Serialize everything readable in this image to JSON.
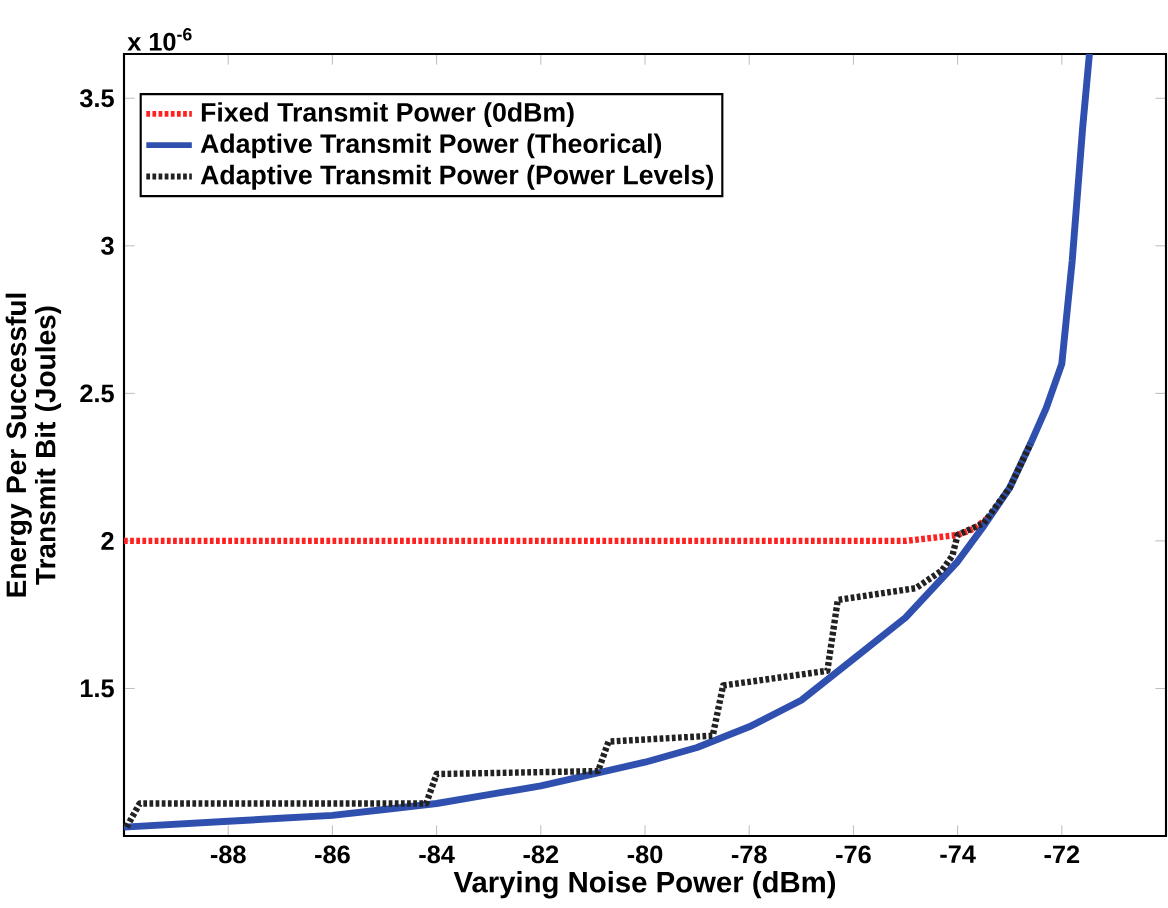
{
  "chart_data": {
    "type": "line",
    "xlabel": "Varying Noise Power (dBm)",
    "ylabel": "Energy Per Successful Transmit Bit (Joules)",
    "annotations": [
      "x 10$^{-6}$"
    ],
    "xlim": [
      -90,
      -70
    ],
    "ylim": [
      1.0,
      3.65
    ],
    "xticks": [
      -88,
      -86,
      -84,
      -82,
      -80,
      -78,
      -76,
      -74,
      -72
    ],
    "yticks": [
      1.5,
      2,
      2.5,
      3,
      3.5
    ],
    "grid": false,
    "legend": "top left",
    "marker": "none",
    "series": [
      {
        "name": "Fixed Transmit Power (0dBm)",
        "color": "#ff2020",
        "line_style": "dotted",
        "x": [
          -90,
          -75,
          -74.5,
          -74,
          -73.7,
          -73.4
        ],
        "values": [
          2.0,
          2.0,
          2.01,
          2.02,
          2.04,
          2.08
        ]
      },
      {
        "name": "Adaptive Transmit Power (Theorical)",
        "color": "#3050b0",
        "line_style": "solid",
        "x": [
          -90,
          -89,
          -88,
          -87,
          -86,
          -85,
          -84,
          -83,
          -82,
          -81,
          -80,
          -79,
          -78,
          -77,
          -76,
          -75,
          -74,
          -73.5,
          -73,
          -72.6,
          -72.3,
          -72,
          -71.8,
          -71.6,
          -71.47
        ],
        "values": [
          1.03,
          1.04,
          1.05,
          1.06,
          1.07,
          1.09,
          1.11,
          1.14,
          1.17,
          1.21,
          1.25,
          1.3,
          1.37,
          1.46,
          1.6,
          1.74,
          1.93,
          2.05,
          2.18,
          2.33,
          2.45,
          2.6,
          2.95,
          3.4,
          3.65
        ]
      },
      {
        "name": "Adaptive Transmit Power (Power Levels)",
        "color": "#222222",
        "line_style": "dotted",
        "x": [
          -89.95,
          -89.7,
          -84.2,
          -84,
          -80.9,
          -80.7,
          -78.7,
          -78.5,
          -76.5,
          -76.3,
          -74.8,
          -74.3,
          -74.1,
          -74,
          -73.5,
          -73,
          -72.6
        ],
        "values": [
          1.03,
          1.11,
          1.11,
          1.21,
          1.22,
          1.32,
          1.34,
          1.51,
          1.56,
          1.8,
          1.84,
          1.9,
          1.95,
          2.02,
          2.06,
          2.18,
          2.33
        ]
      }
    ]
  }
}
